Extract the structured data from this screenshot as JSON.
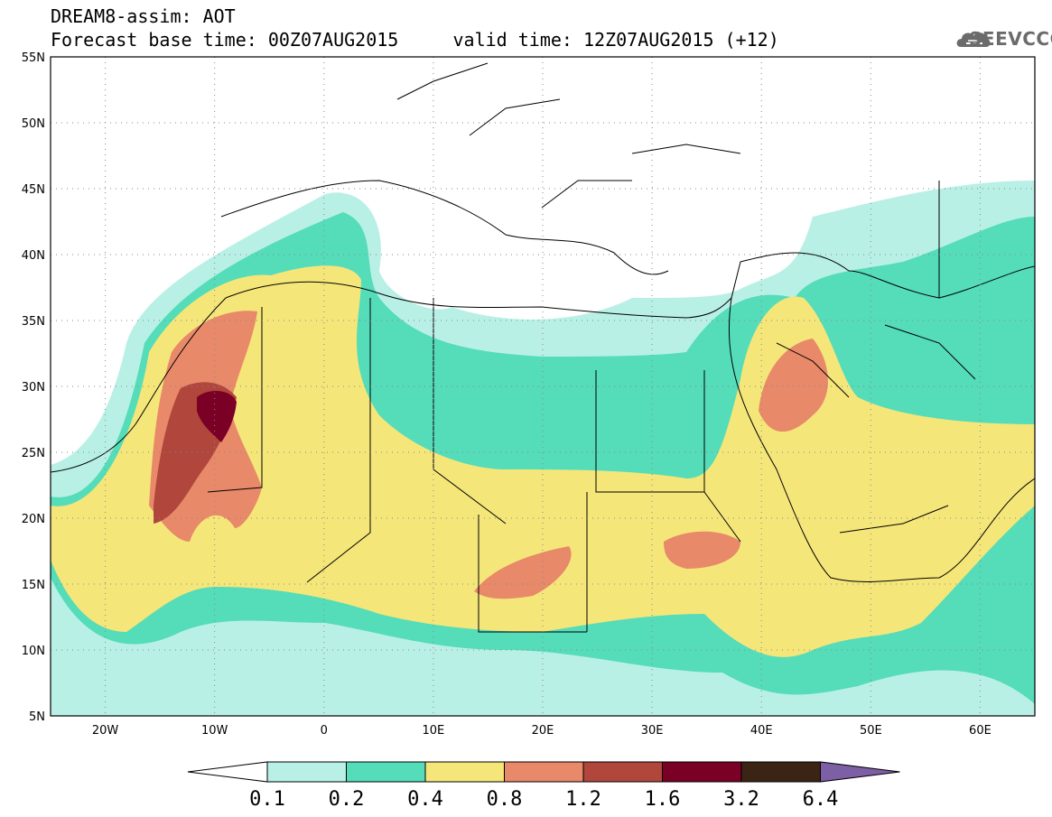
{
  "header": {
    "title_line1": "DREAM8-assim: AOT",
    "title_line2": "Forecast base time: 00Z07AUG2015     valid time: 12Z07AUG2015 (+12)",
    "logo_text": "SEEVCCC"
  },
  "map": {
    "lon_range": [
      -25,
      65
    ],
    "lat_range": [
      5,
      55
    ],
    "lat_ticks": [
      "5N",
      "10N",
      "15N",
      "20N",
      "25N",
      "30N",
      "35N",
      "40N",
      "45N",
      "50N",
      "55N"
    ],
    "lon_ticks": [
      "20W",
      "10W",
      "0",
      "10E",
      "20E",
      "30E",
      "40E",
      "50E",
      "60E"
    ],
    "grid": "dotted"
  },
  "colorbar": {
    "labels": [
      "0.1",
      "0.2",
      "0.4",
      "0.8",
      "1.2",
      "1.6",
      "3.2",
      "6.4"
    ],
    "colors": [
      "#b9f0e6",
      "#55dcb9",
      "#f5e67a",
      "#e8896a",
      "#b0463c",
      "#7a0026",
      "#3b2414",
      "#7d5fa5"
    ]
  },
  "colors": {
    "c1": "#b9f0e6",
    "c2": "#55dcb9",
    "c3": "#f5e67a",
    "c4": "#e8896a",
    "c5": "#b0463c",
    "c6": "#7a0026"
  }
}
